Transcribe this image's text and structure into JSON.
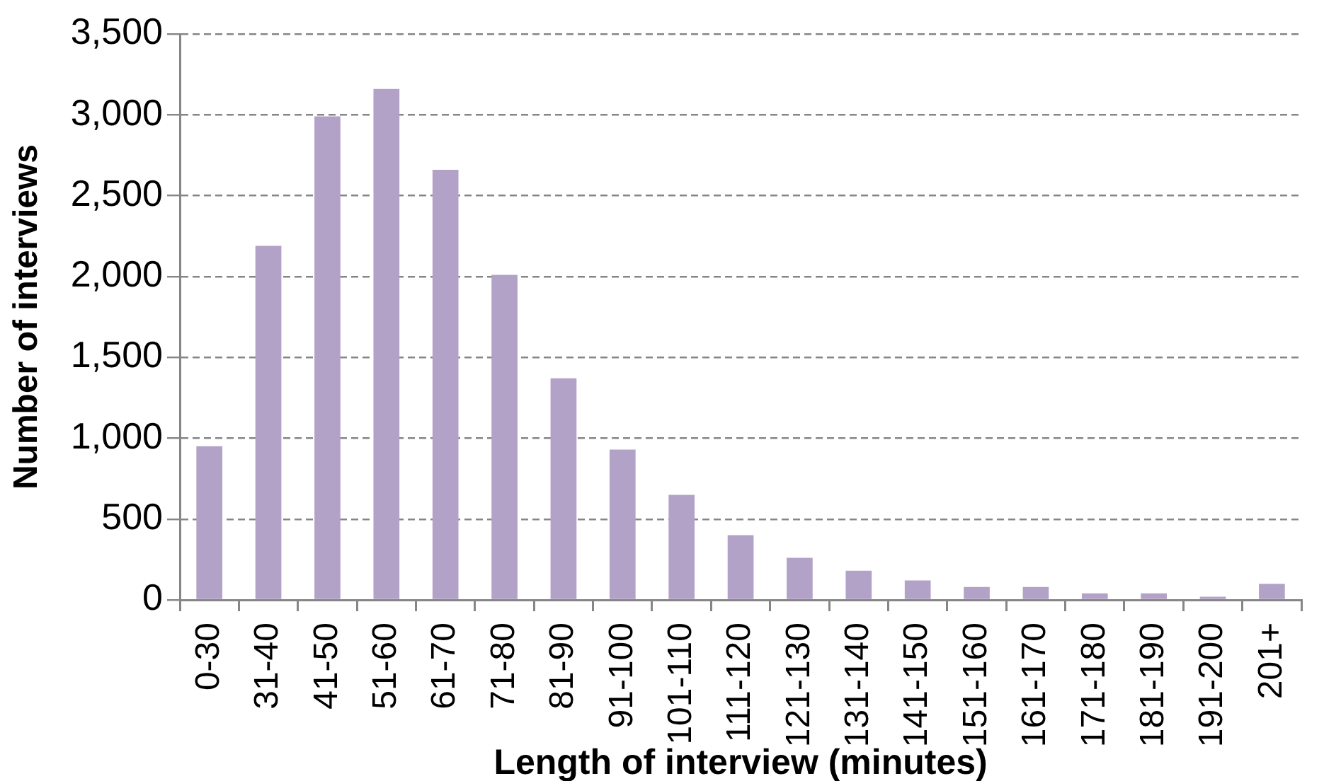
{
  "chart_data": {
    "type": "bar",
    "xlabel": "Length of interview (minutes)",
    "ylabel": "Number of interviews",
    "categories": [
      "0-30",
      "31-40",
      "41-50",
      "51-60",
      "61-70",
      "71-80",
      "81-90",
      "91-100",
      "101-110",
      "111-120",
      "121-130",
      "131-140",
      "141-150",
      "151-160",
      "161-170",
      "171-180",
      "181-190",
      "191-200",
      "201+"
    ],
    "values": [
      950,
      2190,
      2990,
      3160,
      2660,
      2010,
      1370,
      930,
      650,
      400,
      260,
      180,
      120,
      80,
      80,
      40,
      40,
      20,
      100
    ],
    "color": "#b3a2c7",
    "ylim": [
      0,
      3500
    ],
    "yticks": [
      0,
      500,
      {
        "value": 1000,
        "label": "1,000"
      },
      {
        "value": 1500,
        "label": "1,500"
      },
      {
        "value": 2000,
        "label": "2,000"
      },
      {
        "value": 2500,
        "label": "2,500"
      },
      {
        "value": 3000,
        "label": "3,000"
      },
      {
        "value": 3500,
        "label": "3,500"
      }
    ],
    "grid": "y"
  }
}
